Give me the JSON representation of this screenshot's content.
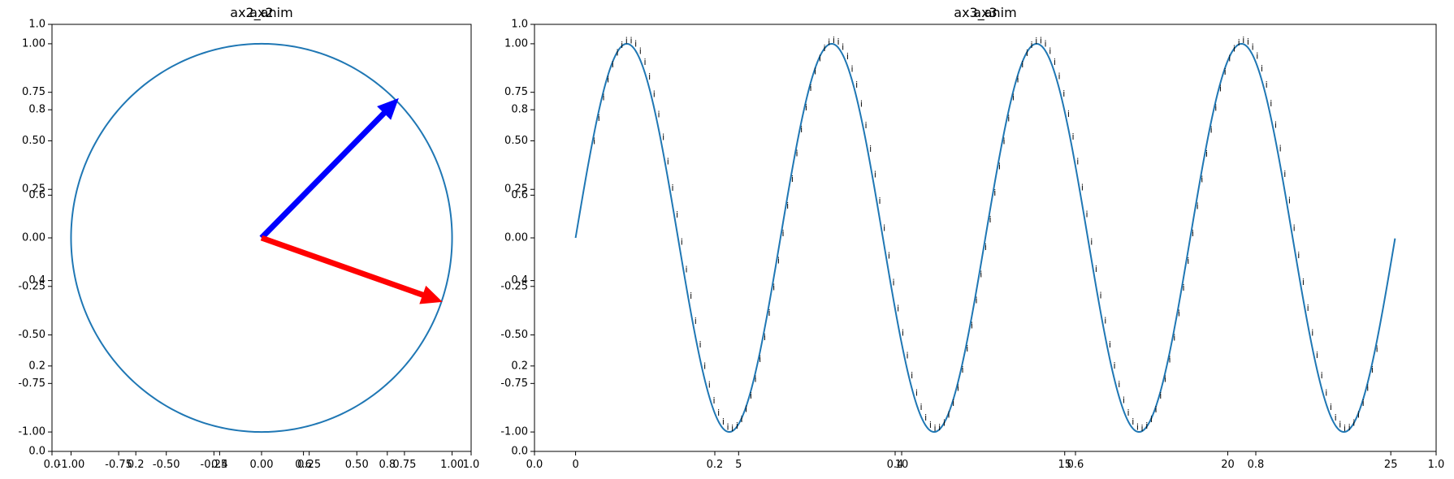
{
  "chart_data": [
    {
      "type": "line",
      "title": "ax2_anim",
      "overlay_title": "ax2",
      "xlim": [
        -1.1,
        1.1
      ],
      "ylim": [
        -1.1,
        1.1
      ],
      "x_ticks": [
        "-1.00",
        "-0.75",
        "-0.50",
        "-0.25",
        "0.00",
        "0.25",
        "0.50",
        "0.75",
        "1.00"
      ],
      "y_ticks": [
        "-1.00",
        "-0.75",
        "-0.50",
        "-0.25",
        "0.00",
        "0.25",
        "0.50",
        "0.75",
        "1.00"
      ],
      "x_tick_values": [
        -1.0,
        -0.75,
        -0.5,
        -0.25,
        0.0,
        0.25,
        0.5,
        0.75,
        1.0
      ],
      "y_tick_values": [
        -1.0,
        -0.75,
        -0.5,
        -0.25,
        0.0,
        0.25,
        0.5,
        0.75,
        1.0
      ],
      "overlay_ticks": [
        "0.0",
        "0.2",
        "0.4",
        "0.6",
        "0.8",
        "1.0"
      ],
      "overlay_tick_values": [
        0.0,
        0.2,
        0.4,
        0.6,
        0.8,
        1.0
      ],
      "series": [
        {
          "kind": "circle",
          "radius": 1.0,
          "color": "#1f77b4"
        }
      ],
      "arrows": [
        {
          "x0": 0,
          "y0": 0,
          "x1": 0.72,
          "y1": 0.72,
          "color": "#0000ff"
        },
        {
          "x0": 0,
          "y0": 0,
          "x1": 0.95,
          "y1": -0.33,
          "color": "#ff0000"
        }
      ],
      "grid": false
    },
    {
      "type": "line",
      "title": "ax3_anim",
      "overlay_title": "ax3",
      "function": "sin(x)",
      "xlim": [
        -1.26,
        26.39
      ],
      "ylim": [
        -1.1,
        1.1
      ],
      "x_ticks": [
        "0",
        "5",
        "10",
        "15",
        "20",
        "25"
      ],
      "x_tick_values": [
        0,
        5,
        10,
        15,
        20,
        25
      ],
      "y_ticks": [
        "-1.00",
        "-0.75",
        "-0.50",
        "-0.25",
        "0.00",
        "0.25",
        "0.50",
        "0.75",
        "1.00"
      ],
      "y_tick_values": [
        -1.0,
        -0.75,
        -0.5,
        -0.25,
        0.0,
        0.25,
        0.5,
        0.75,
        1.0
      ],
      "overlay_ticks": [
        "0.0",
        "0.2",
        "0.4",
        "0.6",
        "0.8",
        "1.0"
      ],
      "overlay_tick_values": [
        0.0,
        0.2,
        0.4,
        0.6,
        0.8,
        1.0
      ],
      "series": [
        {
          "kind": "sine",
          "x_start": 0,
          "x_end": 25.13,
          "color": "#1f77b4"
        }
      ],
      "annotation_text": "i",
      "annotation_x_start": 0.5,
      "annotation_x_end": 24.5,
      "annotation_count": 171,
      "grid": false
    }
  ]
}
